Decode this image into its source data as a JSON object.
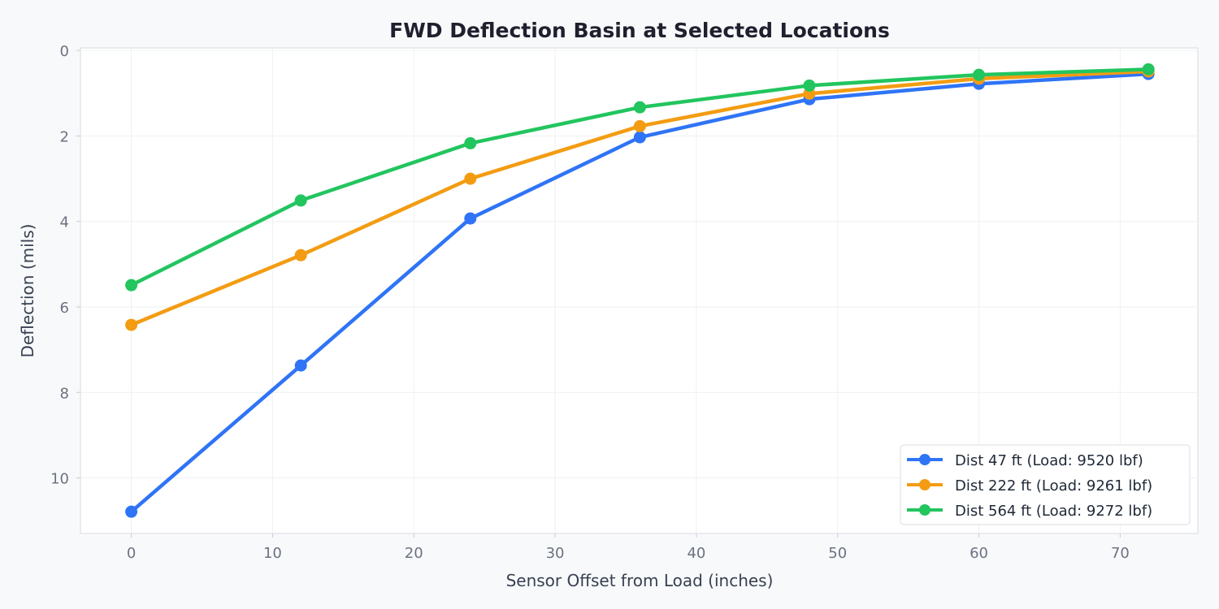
{
  "chart_data": {
    "type": "line",
    "title": "FWD Deflection Basin at Selected Locations",
    "xlabel": "Sensor Offset from Load (inches)",
    "ylabel": "Deflection (mils)",
    "xlim": [
      -3.6,
      75.5
    ],
    "ylim": [
      11.3,
      -0.06
    ],
    "y_inverted": true,
    "grid": true,
    "legend_position": "bottom-right",
    "xticks": [
      0,
      10,
      20,
      30,
      40,
      50,
      60,
      70
    ],
    "yticks": [
      0,
      2,
      4,
      6,
      8,
      10
    ],
    "x": [
      0,
      12,
      24,
      36,
      48,
      60,
      72
    ],
    "series": [
      {
        "name": "Dist 47 ft (Load: 9520 lbf)",
        "color": "#2f74f6",
        "values": [
          10.79,
          7.37,
          3.93,
          2.03,
          1.14,
          0.78,
          0.55
        ]
      },
      {
        "name": "Dist 222 ft (Load: 9261 lbf)",
        "color": "#f39c12",
        "values": [
          6.42,
          4.79,
          3.0,
          1.77,
          1.01,
          0.66,
          0.49
        ]
      },
      {
        "name": "Dist 564 ft (Load: 9272 lbf)",
        "color": "#22c55e",
        "values": [
          5.49,
          3.51,
          2.17,
          1.33,
          0.82,
          0.57,
          0.44
        ]
      }
    ]
  }
}
